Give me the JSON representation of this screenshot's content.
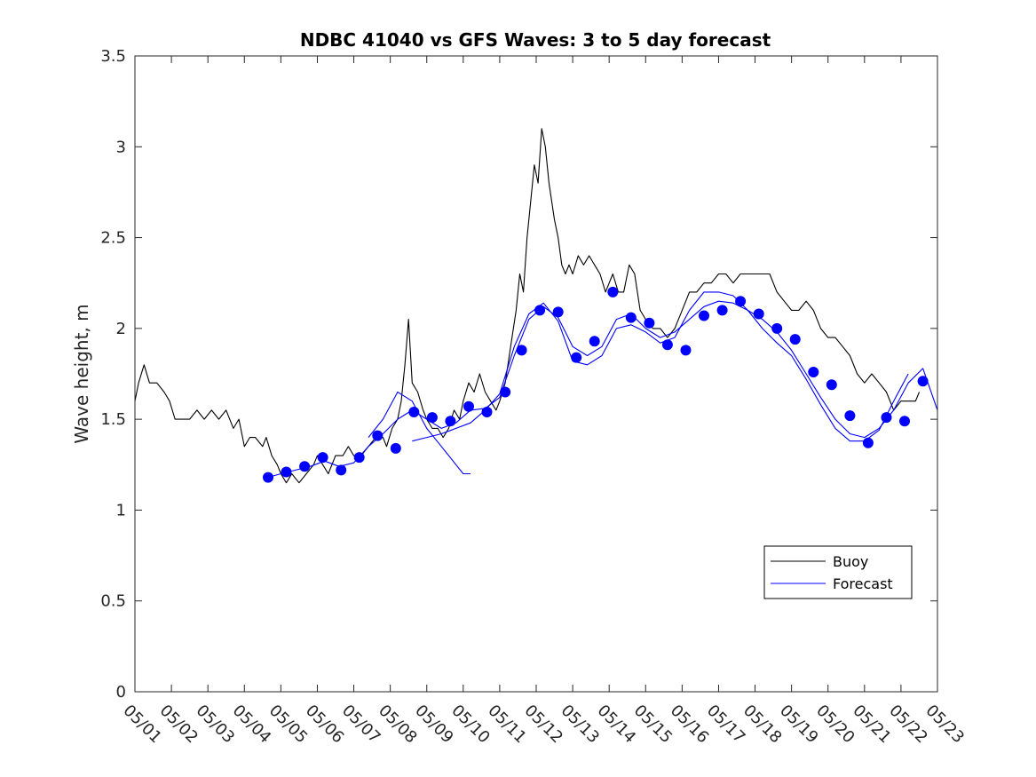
{
  "chart_data": {
    "type": "line",
    "title": "NDBC 41040 vs GFS Waves: 3 to 5 day forecast",
    "xlabel": "",
    "ylabel": "Wave height, m",
    "x_day_range": [
      1,
      23
    ],
    "x_ticks": [
      "05/01",
      "05/02",
      "05/03",
      "05/04",
      "05/05",
      "05/06",
      "05/07",
      "05/08",
      "05/09",
      "05/10",
      "05/11",
      "05/12",
      "05/13",
      "05/14",
      "05/15",
      "05/16",
      "05/17",
      "05/18",
      "05/19",
      "05/20",
      "05/21",
      "05/22",
      "05/23"
    ],
    "ylim": [
      0,
      3.5
    ],
    "y_ticks": [
      "0",
      "0.5",
      "1",
      "1.5",
      "2",
      "2.5",
      "3",
      "3.5"
    ],
    "grid": false,
    "legend_position": "bottom-right",
    "colors": {
      "buoy": "#000000",
      "forecast": "#0000ff",
      "markers": "#0000ff"
    },
    "legend": [
      {
        "label": "Buoy",
        "color": "#000000"
      },
      {
        "label": "Forecast",
        "color": "#0000ff"
      }
    ],
    "series": [
      {
        "name": "Buoy",
        "color": "#000000",
        "points": [
          [
            1.0,
            1.6
          ],
          [
            1.1,
            1.7
          ],
          [
            1.25,
            1.8
          ],
          [
            1.4,
            1.7
          ],
          [
            1.6,
            1.7
          ],
          [
            1.8,
            1.65
          ],
          [
            1.95,
            1.6
          ],
          [
            2.1,
            1.5
          ],
          [
            2.3,
            1.5
          ],
          [
            2.5,
            1.5
          ],
          [
            2.7,
            1.55
          ],
          [
            2.9,
            1.5
          ],
          [
            3.1,
            1.55
          ],
          [
            3.3,
            1.5
          ],
          [
            3.5,
            1.55
          ],
          [
            3.7,
            1.45
          ],
          [
            3.85,
            1.5
          ],
          [
            4.0,
            1.35
          ],
          [
            4.15,
            1.4
          ],
          [
            4.3,
            1.4
          ],
          [
            4.5,
            1.35
          ],
          [
            4.6,
            1.4
          ],
          [
            4.75,
            1.3
          ],
          [
            4.9,
            1.25
          ],
          [
            5.0,
            1.2
          ],
          [
            5.15,
            1.15
          ],
          [
            5.3,
            1.2
          ],
          [
            5.5,
            1.15
          ],
          [
            5.7,
            1.2
          ],
          [
            5.9,
            1.25
          ],
          [
            6.0,
            1.3
          ],
          [
            6.15,
            1.25
          ],
          [
            6.3,
            1.2
          ],
          [
            6.5,
            1.3
          ],
          [
            6.7,
            1.3
          ],
          [
            6.85,
            1.35
          ],
          [
            7.0,
            1.3
          ],
          [
            7.2,
            1.3
          ],
          [
            7.4,
            1.35
          ],
          [
            7.6,
            1.4
          ],
          [
            7.8,
            1.4
          ],
          [
            7.9,
            1.35
          ],
          [
            8.05,
            1.45
          ],
          [
            8.2,
            1.5
          ],
          [
            8.3,
            1.6
          ],
          [
            8.4,
            1.8
          ],
          [
            8.5,
            2.05
          ],
          [
            8.6,
            1.7
          ],
          [
            8.75,
            1.65
          ],
          [
            8.9,
            1.55
          ],
          [
            9.0,
            1.5
          ],
          [
            9.15,
            1.45
          ],
          [
            9.3,
            1.45
          ],
          [
            9.45,
            1.4
          ],
          [
            9.6,
            1.45
          ],
          [
            9.75,
            1.55
          ],
          [
            9.9,
            1.5
          ],
          [
            10.0,
            1.6
          ],
          [
            10.15,
            1.7
          ],
          [
            10.3,
            1.65
          ],
          [
            10.45,
            1.75
          ],
          [
            10.6,
            1.65
          ],
          [
            10.75,
            1.6
          ],
          [
            10.9,
            1.55
          ],
          [
            11.0,
            1.6
          ],
          [
            11.15,
            1.7
          ],
          [
            11.3,
            1.9
          ],
          [
            11.45,
            2.1
          ],
          [
            11.55,
            2.3
          ],
          [
            11.65,
            2.2
          ],
          [
            11.75,
            2.5
          ],
          [
            11.85,
            2.7
          ],
          [
            11.95,
            2.9
          ],
          [
            12.05,
            2.8
          ],
          [
            12.15,
            3.1
          ],
          [
            12.25,
            3.0
          ],
          [
            12.35,
            2.8
          ],
          [
            12.5,
            2.6
          ],
          [
            12.6,
            2.5
          ],
          [
            12.7,
            2.35
          ],
          [
            12.8,
            2.3
          ],
          [
            12.9,
            2.35
          ],
          [
            13.0,
            2.3
          ],
          [
            13.15,
            2.4
          ],
          [
            13.3,
            2.35
          ],
          [
            13.45,
            2.4
          ],
          [
            13.6,
            2.35
          ],
          [
            13.75,
            2.3
          ],
          [
            13.9,
            2.2
          ],
          [
            14.0,
            2.25
          ],
          [
            14.1,
            2.3
          ],
          [
            14.25,
            2.2
          ],
          [
            14.4,
            2.2
          ],
          [
            14.55,
            2.35
          ],
          [
            14.7,
            2.3
          ],
          [
            14.85,
            2.1
          ],
          [
            15.0,
            2.05
          ],
          [
            15.2,
            2.0
          ],
          [
            15.4,
            2.0
          ],
          [
            15.6,
            1.95
          ],
          [
            15.8,
            2.0
          ],
          [
            16.0,
            2.1
          ],
          [
            16.2,
            2.2
          ],
          [
            16.4,
            2.2
          ],
          [
            16.6,
            2.25
          ],
          [
            16.8,
            2.25
          ],
          [
            17.0,
            2.3
          ],
          [
            17.2,
            2.3
          ],
          [
            17.4,
            2.25
          ],
          [
            17.6,
            2.3
          ],
          [
            17.8,
            2.3
          ],
          [
            18.0,
            2.3
          ],
          [
            18.2,
            2.3
          ],
          [
            18.4,
            2.3
          ],
          [
            18.6,
            2.2
          ],
          [
            18.8,
            2.15
          ],
          [
            19.0,
            2.1
          ],
          [
            19.2,
            2.1
          ],
          [
            19.4,
            2.15
          ],
          [
            19.6,
            2.1
          ],
          [
            19.8,
            2.0
          ],
          [
            20.0,
            1.95
          ],
          [
            20.2,
            1.95
          ],
          [
            20.4,
            1.9
          ],
          [
            20.6,
            1.85
          ],
          [
            20.8,
            1.75
          ],
          [
            21.0,
            1.7
          ],
          [
            21.2,
            1.75
          ],
          [
            21.4,
            1.7
          ],
          [
            21.6,
            1.65
          ],
          [
            21.8,
            1.55
          ],
          [
            22.0,
            1.6
          ],
          [
            22.2,
            1.6
          ],
          [
            22.4,
            1.6
          ],
          [
            22.5,
            1.65
          ]
        ]
      },
      {
        "name": "Forecast",
        "color": "#0000ff",
        "points": [
          [
            4.65,
            1.18
          ],
          [
            5.0,
            1.2
          ],
          [
            5.4,
            1.22
          ],
          [
            5.8,
            1.24
          ],
          [
            6.2,
            1.27
          ],
          [
            6.6,
            1.24
          ],
          [
            7.0,
            1.26
          ],
          [
            7.4,
            1.35
          ],
          [
            7.8,
            1.42
          ],
          [
            8.2,
            1.5
          ],
          [
            8.6,
            1.55
          ],
          [
            9.0,
            1.5
          ],
          [
            9.4,
            1.45
          ],
          [
            9.8,
            1.48
          ],
          [
            10.2,
            1.55
          ],
          [
            10.6,
            1.56
          ],
          [
            11.0,
            1.62
          ],
          [
            11.4,
            1.85
          ],
          [
            11.8,
            2.05
          ],
          [
            12.2,
            2.12
          ],
          [
            12.6,
            2.06
          ],
          [
            13.0,
            1.9
          ],
          [
            13.4,
            1.85
          ],
          [
            13.8,
            1.9
          ],
          [
            14.2,
            2.05
          ],
          [
            14.6,
            2.08
          ],
          [
            15.0,
            2.0
          ],
          [
            15.4,
            1.95
          ],
          [
            15.8,
            1.98
          ],
          [
            16.2,
            2.05
          ],
          [
            16.6,
            2.12
          ],
          [
            17.0,
            2.15
          ],
          [
            17.4,
            2.14
          ],
          [
            17.8,
            2.1
          ],
          [
            18.2,
            2.05
          ],
          [
            18.6,
            1.98
          ],
          [
            19.0,
            1.88
          ],
          [
            19.4,
            1.75
          ],
          [
            19.8,
            1.62
          ],
          [
            20.2,
            1.5
          ],
          [
            20.6,
            1.42
          ],
          [
            21.0,
            1.4
          ],
          [
            21.4,
            1.45
          ],
          [
            21.8,
            1.55
          ],
          [
            22.2,
            1.7
          ],
          [
            22.6,
            1.78
          ],
          [
            23.0,
            1.55
          ]
        ]
      },
      {
        "name": "Forecast",
        "color": "#0000ff",
        "points": [
          [
            7.4,
            1.4
          ],
          [
            7.8,
            1.5
          ],
          [
            8.2,
            1.65
          ],
          [
            8.6,
            1.6
          ],
          [
            9.0,
            1.45
          ],
          [
            9.4,
            1.35
          ],
          [
            9.8,
            1.25
          ],
          [
            10.0,
            1.2
          ],
          [
            10.2,
            1.2
          ]
        ]
      },
      {
        "name": "Forecast",
        "color": "#0000ff",
        "points": [
          [
            8.6,
            1.38
          ],
          [
            9.0,
            1.4
          ],
          [
            9.4,
            1.42
          ],
          [
            9.8,
            1.45
          ],
          [
            10.2,
            1.48
          ],
          [
            10.6,
            1.55
          ],
          [
            11.0,
            1.64
          ],
          [
            11.4,
            1.9
          ],
          [
            11.8,
            2.08
          ],
          [
            12.2,
            2.14
          ],
          [
            12.6,
            2.04
          ],
          [
            13.0,
            1.82
          ],
          [
            13.4,
            1.8
          ],
          [
            13.8,
            1.85
          ],
          [
            14.2,
            2.0
          ],
          [
            14.6,
            2.02
          ],
          [
            15.0,
            1.98
          ],
          [
            15.4,
            1.92
          ],
          [
            15.8,
            1.95
          ],
          [
            16.2,
            2.1
          ],
          [
            16.6,
            2.2
          ],
          [
            17.0,
            2.2
          ],
          [
            17.4,
            2.18
          ],
          [
            17.8,
            2.1
          ],
          [
            18.2,
            2.0
          ],
          [
            18.6,
            1.92
          ],
          [
            19.0,
            1.85
          ],
          [
            19.4,
            1.72
          ],
          [
            19.8,
            1.58
          ],
          [
            20.2,
            1.45
          ],
          [
            20.6,
            1.38
          ],
          [
            21.0,
            1.38
          ],
          [
            21.4,
            1.44
          ],
          [
            21.8,
            1.6
          ],
          [
            22.2,
            1.75
          ]
        ]
      }
    ],
    "markers": {
      "name": "Forecast",
      "color": "#0000ff",
      "points": [
        [
          4.65,
          1.18
        ],
        [
          5.15,
          1.21
        ],
        [
          5.65,
          1.24
        ],
        [
          6.15,
          1.29
        ],
        [
          6.65,
          1.22
        ],
        [
          7.15,
          1.29
        ],
        [
          7.65,
          1.41
        ],
        [
          8.15,
          1.34
        ],
        [
          8.65,
          1.54
        ],
        [
          9.15,
          1.51
        ],
        [
          9.65,
          1.49
        ],
        [
          10.15,
          1.57
        ],
        [
          10.65,
          1.54
        ],
        [
          11.15,
          1.65
        ],
        [
          11.6,
          1.88
        ],
        [
          12.1,
          2.1
        ],
        [
          12.6,
          2.09
        ],
        [
          13.1,
          1.84
        ],
        [
          13.6,
          1.93
        ],
        [
          14.1,
          2.2
        ],
        [
          14.6,
          2.06
        ],
        [
          15.1,
          2.03
        ],
        [
          15.6,
          1.91
        ],
        [
          16.1,
          1.88
        ],
        [
          16.6,
          2.07
        ],
        [
          17.1,
          2.1
        ],
        [
          17.6,
          2.15
        ],
        [
          18.1,
          2.08
        ],
        [
          18.6,
          2.0
        ],
        [
          19.1,
          1.94
        ],
        [
          19.6,
          1.76
        ],
        [
          20.1,
          1.69
        ],
        [
          20.6,
          1.52
        ],
        [
          21.1,
          1.37
        ],
        [
          21.6,
          1.51
        ],
        [
          22.1,
          1.49
        ],
        [
          22.6,
          1.71
        ]
      ]
    }
  }
}
